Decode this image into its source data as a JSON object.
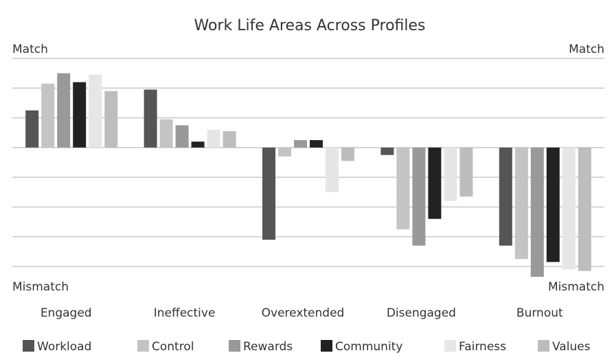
{
  "chart_data": {
    "type": "bar",
    "title": "Work Life Areas Across Profiles",
    "top_label": "Match",
    "bottom_label": "Mismatch",
    "categories": [
      "Engaged",
      "Ineffective",
      "Overextended",
      "Disengaged",
      "Burnout"
    ],
    "series": [
      {
        "name": "Workload",
        "color": "#555555",
        "values": [
          1.25,
          1.95,
          -3.1,
          -0.25,
          -3.3
        ]
      },
      {
        "name": "Control",
        "color": "#c4c4c4",
        "values": [
          2.15,
          0.95,
          -0.3,
          -2.75,
          -3.75
        ]
      },
      {
        "name": "Rewards",
        "color": "#999999",
        "values": [
          2.5,
          0.75,
          0.25,
          -3.3,
          -4.35
        ]
      },
      {
        "name": "Community",
        "color": "#222222",
        "values": [
          2.2,
          0.2,
          0.25,
          -2.4,
          -3.85
        ]
      },
      {
        "name": "Fairness",
        "color": "#e6e6e6",
        "values": [
          2.45,
          0.6,
          -1.5,
          -1.8,
          -4.1
        ]
      },
      {
        "name": "Values",
        "color": "#bdbdbd",
        "values": [
          1.9,
          0.55,
          -0.45,
          -1.65,
          -4.15
        ]
      }
    ],
    "ylim": [
      -4.5,
      3
    ],
    "yticks": [
      -4,
      -3,
      -2,
      -1,
      0,
      1,
      2,
      3
    ],
    "grid": true
  }
}
